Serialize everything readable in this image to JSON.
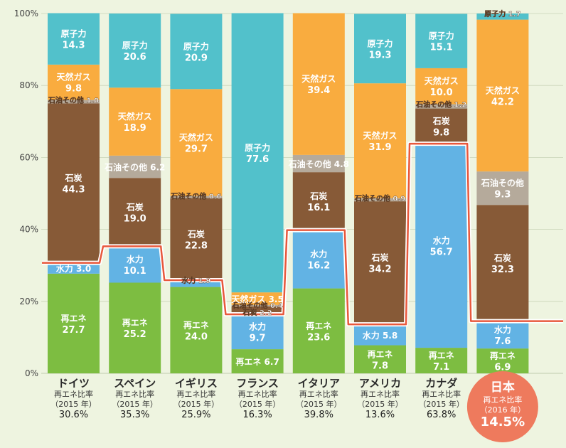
{
  "chart_data": {
    "type": "bar",
    "stacked": true,
    "ylim": [
      0,
      100
    ],
    "y_ticks": [
      0,
      20,
      40,
      60,
      80,
      100
    ],
    "y_tick_labels": [
      "0%",
      "20%",
      "40%",
      "60%",
      "80%",
      "100%"
    ],
    "grid": true,
    "source_order": [
      "renewable",
      "hydro",
      "coal",
      "oil_other",
      "gas",
      "nuclear"
    ],
    "source_names": {
      "renewable": "再エネ",
      "hydro": "水力",
      "coal": "石炭",
      "oil_other": "石油その他",
      "gas": "天然ガス",
      "nuclear": "原子力"
    },
    "colors": {
      "renewable": "#7dbd41",
      "hydro": "#62b3e4",
      "coal": "#875a37",
      "oil_other": "#b5aa9b",
      "gas": "#f9ac3f",
      "nuclear": "#52c1cb",
      "line": "#e8583c",
      "japan_circle": "#ee7a5d"
    },
    "countries": [
      {
        "name": "ドイツ",
        "ratio_label": "再エネ比率",
        "year": "（2015 年）",
        "ratio": "30.6%",
        "values": {
          "renewable": 27.7,
          "hydro": 3.0,
          "coal": 44.3,
          "oil_other": 1.0,
          "gas": 9.8,
          "nuclear": 14.3
        }
      },
      {
        "name": "スペイン",
        "ratio_label": "再エネ比率",
        "year": "（2015 年）",
        "ratio": "35.3%",
        "values": {
          "renewable": 25.2,
          "hydro": 10.1,
          "coal": 19.0,
          "oil_other": 6.2,
          "gas": 18.9,
          "nuclear": 20.6
        }
      },
      {
        "name": "イギリス",
        "ratio_label": "再エネ比率",
        "year": "（2015 年）",
        "ratio": "25.9%",
        "values": {
          "renewable": 24.0,
          "hydro": 1.9,
          "coal": 22.8,
          "oil_other": 0.6,
          "gas": 29.7,
          "nuclear": 20.9
        }
      },
      {
        "name": "フランス",
        "ratio_label": "再エネ比率",
        "year": "（2015 年）",
        "ratio": "16.3%",
        "values": {
          "renewable": 6.7,
          "hydro": 9.7,
          "coal": 2.2,
          "oil_other": 0.4,
          "gas": 3.5,
          "nuclear": 77.6
        }
      },
      {
        "name": "イタリア",
        "ratio_label": "再エネ比率",
        "year": "（2015 年）",
        "ratio": "39.8%",
        "values": {
          "renewable": 23.6,
          "hydro": 16.2,
          "coal": 16.1,
          "oil_other": 4.8,
          "gas": 39.4,
          "nuclear": 0
        }
      },
      {
        "name": "アメリカ",
        "ratio_label": "再エネ比率",
        "year": "（2015 年）",
        "ratio": "13.6%",
        "values": {
          "renewable": 7.8,
          "hydro": 5.8,
          "coal": 34.2,
          "oil_other": 0.9,
          "gas": 31.9,
          "nuclear": 19.3
        }
      },
      {
        "name": "カナダ",
        "ratio_label": "再エネ比率",
        "year": "（2015 年）",
        "ratio": "63.8%",
        "values": {
          "renewable": 7.1,
          "hydro": 56.7,
          "coal": 9.8,
          "oil_other": 1.2,
          "gas": 10.0,
          "nuclear": 15.1
        }
      },
      {
        "name": "日本",
        "ratio_label": "再エネ比率",
        "year": "（2016 年）",
        "ratio": "14.5%",
        "highlight": true,
        "values": {
          "renewable": 6.9,
          "hydro": 7.6,
          "coal": 32.3,
          "oil_other": 9.3,
          "gas": 42.2,
          "nuclear": 1.7
        }
      }
    ]
  }
}
